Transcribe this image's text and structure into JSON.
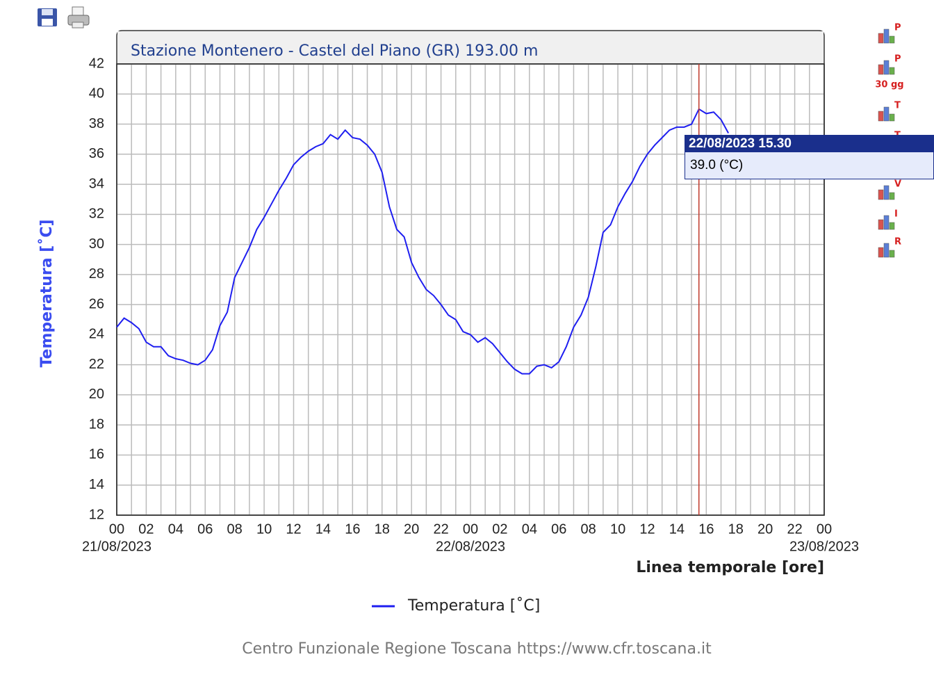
{
  "chart_data": {
    "type": "line",
    "title": "Stazione Montenero - Castel del Piano (GR) 193.00 m",
    "x_label": "Linea temporale [ore]",
    "y_label": "Temperatura [˚C]",
    "footer": "Centro Funzionale Regione Toscana https://www.cfr.toscana.it",
    "xlim": [
      0,
      48
    ],
    "ylim": [
      12,
      42
    ],
    "yticks": [
      12,
      14,
      16,
      18,
      20,
      22,
      24,
      26,
      28,
      30,
      32,
      34,
      36,
      38,
      40,
      42
    ],
    "xticks": [
      {
        "value": 0,
        "label": "00"
      },
      {
        "value": 2,
        "label": "02"
      },
      {
        "value": 4,
        "label": "04"
      },
      {
        "value": 6,
        "label": "06"
      },
      {
        "value": 8,
        "label": "08"
      },
      {
        "value": 10,
        "label": "10"
      },
      {
        "value": 12,
        "label": "12"
      },
      {
        "value": 14,
        "label": "14"
      },
      {
        "value": 16,
        "label": "16"
      },
      {
        "value": 18,
        "label": "18"
      },
      {
        "value": 20,
        "label": "20"
      },
      {
        "value": 22,
        "label": "22"
      },
      {
        "value": 24,
        "label": "00"
      },
      {
        "value": 26,
        "label": "02"
      },
      {
        "value": 28,
        "label": "04"
      },
      {
        "value": 30,
        "label": "06"
      },
      {
        "value": 32,
        "label": "08"
      },
      {
        "value": 34,
        "label": "10"
      },
      {
        "value": 36,
        "label": "12"
      },
      {
        "value": 38,
        "label": "14"
      },
      {
        "value": 40,
        "label": "16"
      },
      {
        "value": 42,
        "label": "18"
      },
      {
        "value": 44,
        "label": "20"
      },
      {
        "value": 46,
        "label": "22"
      },
      {
        "value": 48,
        "label": "00"
      }
    ],
    "xminorticks": [
      1,
      3,
      5,
      7,
      9,
      11,
      13,
      15,
      17,
      19,
      21,
      23,
      25,
      27,
      29,
      31,
      33,
      35,
      37,
      39,
      41,
      43,
      45,
      47
    ],
    "xdateticks": [
      {
        "value": 0,
        "label": "21/08/2023"
      },
      {
        "value": 24,
        "label": "22/08/2023"
      },
      {
        "value": 48,
        "label": "23/08/2023"
      }
    ],
    "grid": true,
    "series": [
      {
        "name": "Temperatura [˚C]",
        "color": "#1e1ef0",
        "x": [
          0,
          0.5,
          1,
          1.5,
          2,
          2.5,
          3,
          3.5,
          4,
          4.5,
          5,
          5.5,
          6,
          6.5,
          7,
          7.5,
          8,
          8.5,
          9,
          9.5,
          10,
          10.5,
          11,
          11.5,
          12,
          12.5,
          13,
          13.5,
          14,
          14.5,
          15,
          15.5,
          16,
          16.5,
          17,
          17.5,
          18,
          18.5,
          19,
          19.5,
          20,
          20.5,
          21,
          21.5,
          22,
          22.5,
          23,
          23.5,
          24,
          24.5,
          25,
          25.5,
          26,
          26.5,
          27,
          27.5,
          28,
          28.5,
          29,
          29.5,
          30,
          30.5,
          31,
          31.5,
          32,
          32.5,
          33,
          33.5,
          34,
          34.5,
          35,
          35.5,
          36,
          36.5,
          37,
          37.5,
          38,
          38.5,
          39,
          39.5,
          40,
          40.5,
          41,
          41.5
        ],
        "values": [
          24.5,
          25.1,
          24.8,
          24.4,
          23.5,
          23.2,
          23.2,
          22.6,
          22.4,
          22.3,
          22.1,
          22.0,
          22.3,
          23.0,
          24.6,
          25.5,
          27.8,
          28.8,
          29.8,
          31.0,
          31.8,
          32.7,
          33.6,
          34.4,
          35.3,
          35.8,
          36.2,
          36.5,
          36.7,
          37.3,
          37.0,
          37.6,
          37.1,
          37.0,
          36.6,
          36.0,
          34.8,
          32.5,
          31.0,
          30.5,
          28.8,
          27.8,
          27.0,
          26.6,
          26.0,
          25.3,
          25.0,
          24.2,
          24.0,
          23.5,
          23.8,
          23.4,
          22.8,
          22.2,
          21.7,
          21.4,
          21.4,
          21.9,
          22.0,
          21.8,
          22.2,
          23.2,
          24.5,
          25.3,
          26.5,
          28.5,
          30.8,
          31.3,
          32.5,
          33.4,
          34.2,
          35.2,
          36.0,
          36.6,
          37.1,
          37.6,
          37.8,
          37.8,
          38.0,
          39.0,
          38.7,
          38.8,
          38.3,
          37.4
        ]
      }
    ],
    "cursor": {
      "x": 39.5,
      "value": 39.0,
      "title": "22/08/2023 15.30",
      "value_label": "39.0 (°C)"
    }
  },
  "side_buttons": [
    {
      "letter": "P"
    },
    {
      "letter": "P",
      "sub": "30 gg"
    },
    {
      "letter": "T"
    },
    {
      "letter": "T"
    },
    {
      "letter": "V"
    },
    {
      "letter": "I"
    },
    {
      "letter": "R"
    }
  ]
}
